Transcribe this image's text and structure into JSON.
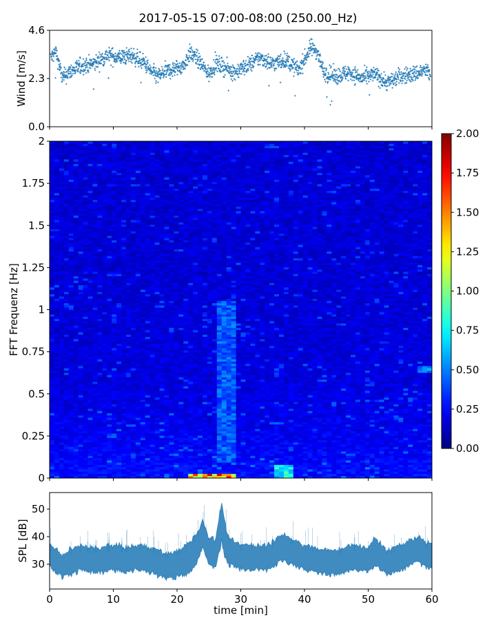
{
  "title": "2017-05-15 07:00-08:00 (250.00_Hz)",
  "chart_data": [
    {
      "type": "scatter",
      "panel": "wind",
      "ylabel": "Wind [m/s]",
      "xlim": [
        0,
        60
      ],
      "ylim": [
        0.0,
        4.6
      ],
      "yticks": [
        "0.0",
        "2.3",
        "4.6"
      ],
      "marker_color": "#1f77b4",
      "trend": {
        "x": [
          0,
          1,
          2,
          3,
          5,
          7,
          9,
          11,
          13,
          15,
          16,
          17,
          18,
          19,
          21,
          22,
          23,
          25,
          26,
          27,
          29,
          31,
          33,
          35,
          37,
          39,
          40,
          41,
          42,
          43,
          45,
          47,
          49,
          51,
          53,
          55,
          57,
          59,
          60
        ],
        "y": [
          3.2,
          3.6,
          2.3,
          2.6,
          2.9,
          3.0,
          3.4,
          3.3,
          3.4,
          3.0,
          2.6,
          2.4,
          2.6,
          2.7,
          2.9,
          3.5,
          3.3,
          2.5,
          3.0,
          2.9,
          2.6,
          2.9,
          3.3,
          3.0,
          3.2,
          2.7,
          3.2,
          3.8,
          3.6,
          2.6,
          2.4,
          2.6,
          2.3,
          2.5,
          2.1,
          2.4,
          2.5,
          2.7,
          2.4
        ]
      }
    },
    {
      "type": "heatmap",
      "panel": "spectrogram",
      "ylabel": "FFT Frequenz [Hz]",
      "xlim": [
        0,
        60
      ],
      "ylim": [
        0,
        2
      ],
      "yticks": [
        "0",
        "0.25",
        "0.5",
        "0.75",
        "1",
        "1.25",
        "1.5",
        "1.75",
        "2"
      ],
      "colormap": "jet",
      "colorbar": {
        "vmin": 0.0,
        "vmax": 2.0,
        "ticks": [
          "0.00",
          "0.25",
          "0.50",
          "0.75",
          "1.00",
          "1.25",
          "1.50",
          "1.75",
          "2.00"
        ]
      },
      "hotspots": [
        {
          "x_start": 22,
          "x_end": 29,
          "f_start": 0.0,
          "f_end": 0.02,
          "value": 1.85
        },
        {
          "x_start": 35,
          "x_end": 38,
          "f_start": 0.0,
          "f_end": 0.08,
          "value": 0.95
        },
        {
          "x_start": 26.5,
          "x_end": 29,
          "f_start": 0.1,
          "f_end": 1.05,
          "value": 0.55
        },
        {
          "x_start": 58,
          "x_end": 60,
          "f_start": 0.63,
          "f_end": 0.67,
          "value": 0.65
        }
      ]
    },
    {
      "type": "area",
      "panel": "spl",
      "ylabel": "SPL [dB]",
      "xlabel": "time [min]",
      "xlim": [
        0,
        60
      ],
      "ylim": [
        21,
        56
      ],
      "yticks": [
        "30",
        "40",
        "50"
      ],
      "xticks": [
        "0",
        "10",
        "20",
        "30",
        "40",
        "50",
        "60"
      ],
      "fill_color": "#1f77b4",
      "series": [
        {
          "x": [
            0,
            1,
            2,
            3,
            4,
            5,
            6,
            8,
            10,
            12,
            14,
            16,
            18,
            19,
            20,
            21,
            22,
            23,
            23.5,
            24,
            24.5,
            25,
            26,
            26.5,
            27,
            27.5,
            28,
            29,
            30,
            32,
            34,
            35,
            36,
            37,
            38,
            39,
            40,
            42,
            44,
            45,
            46,
            48,
            50,
            51,
            52,
            53,
            54,
            55,
            56,
            57,
            58,
            59,
            60
          ],
          "upper": [
            37,
            36,
            33,
            35,
            36,
            37,
            36,
            36,
            37,
            36,
            37,
            36,
            34,
            34,
            35,
            36,
            38,
            41,
            43,
            46,
            43,
            40,
            39,
            45,
            53,
            45,
            40,
            38,
            37,
            37,
            37,
            38,
            41,
            40,
            39,
            38,
            37,
            36,
            35,
            35,
            36,
            37,
            36,
            40,
            37,
            35,
            36,
            37,
            38,
            39,
            40,
            38,
            37
          ],
          "lower": [
            29,
            27,
            25,
            26,
            27,
            28,
            27,
            27,
            28,
            27,
            28,
            27,
            25,
            25,
            25,
            26,
            27,
            30,
            33,
            36,
            33,
            30,
            29,
            33,
            38,
            33,
            30,
            29,
            28,
            28,
            28,
            29,
            31,
            31,
            30,
            29,
            28,
            27,
            26,
            26,
            27,
            28,
            27,
            30,
            28,
            26,
            27,
            28,
            29,
            30,
            31,
            29,
            28
          ]
        }
      ]
    }
  ]
}
